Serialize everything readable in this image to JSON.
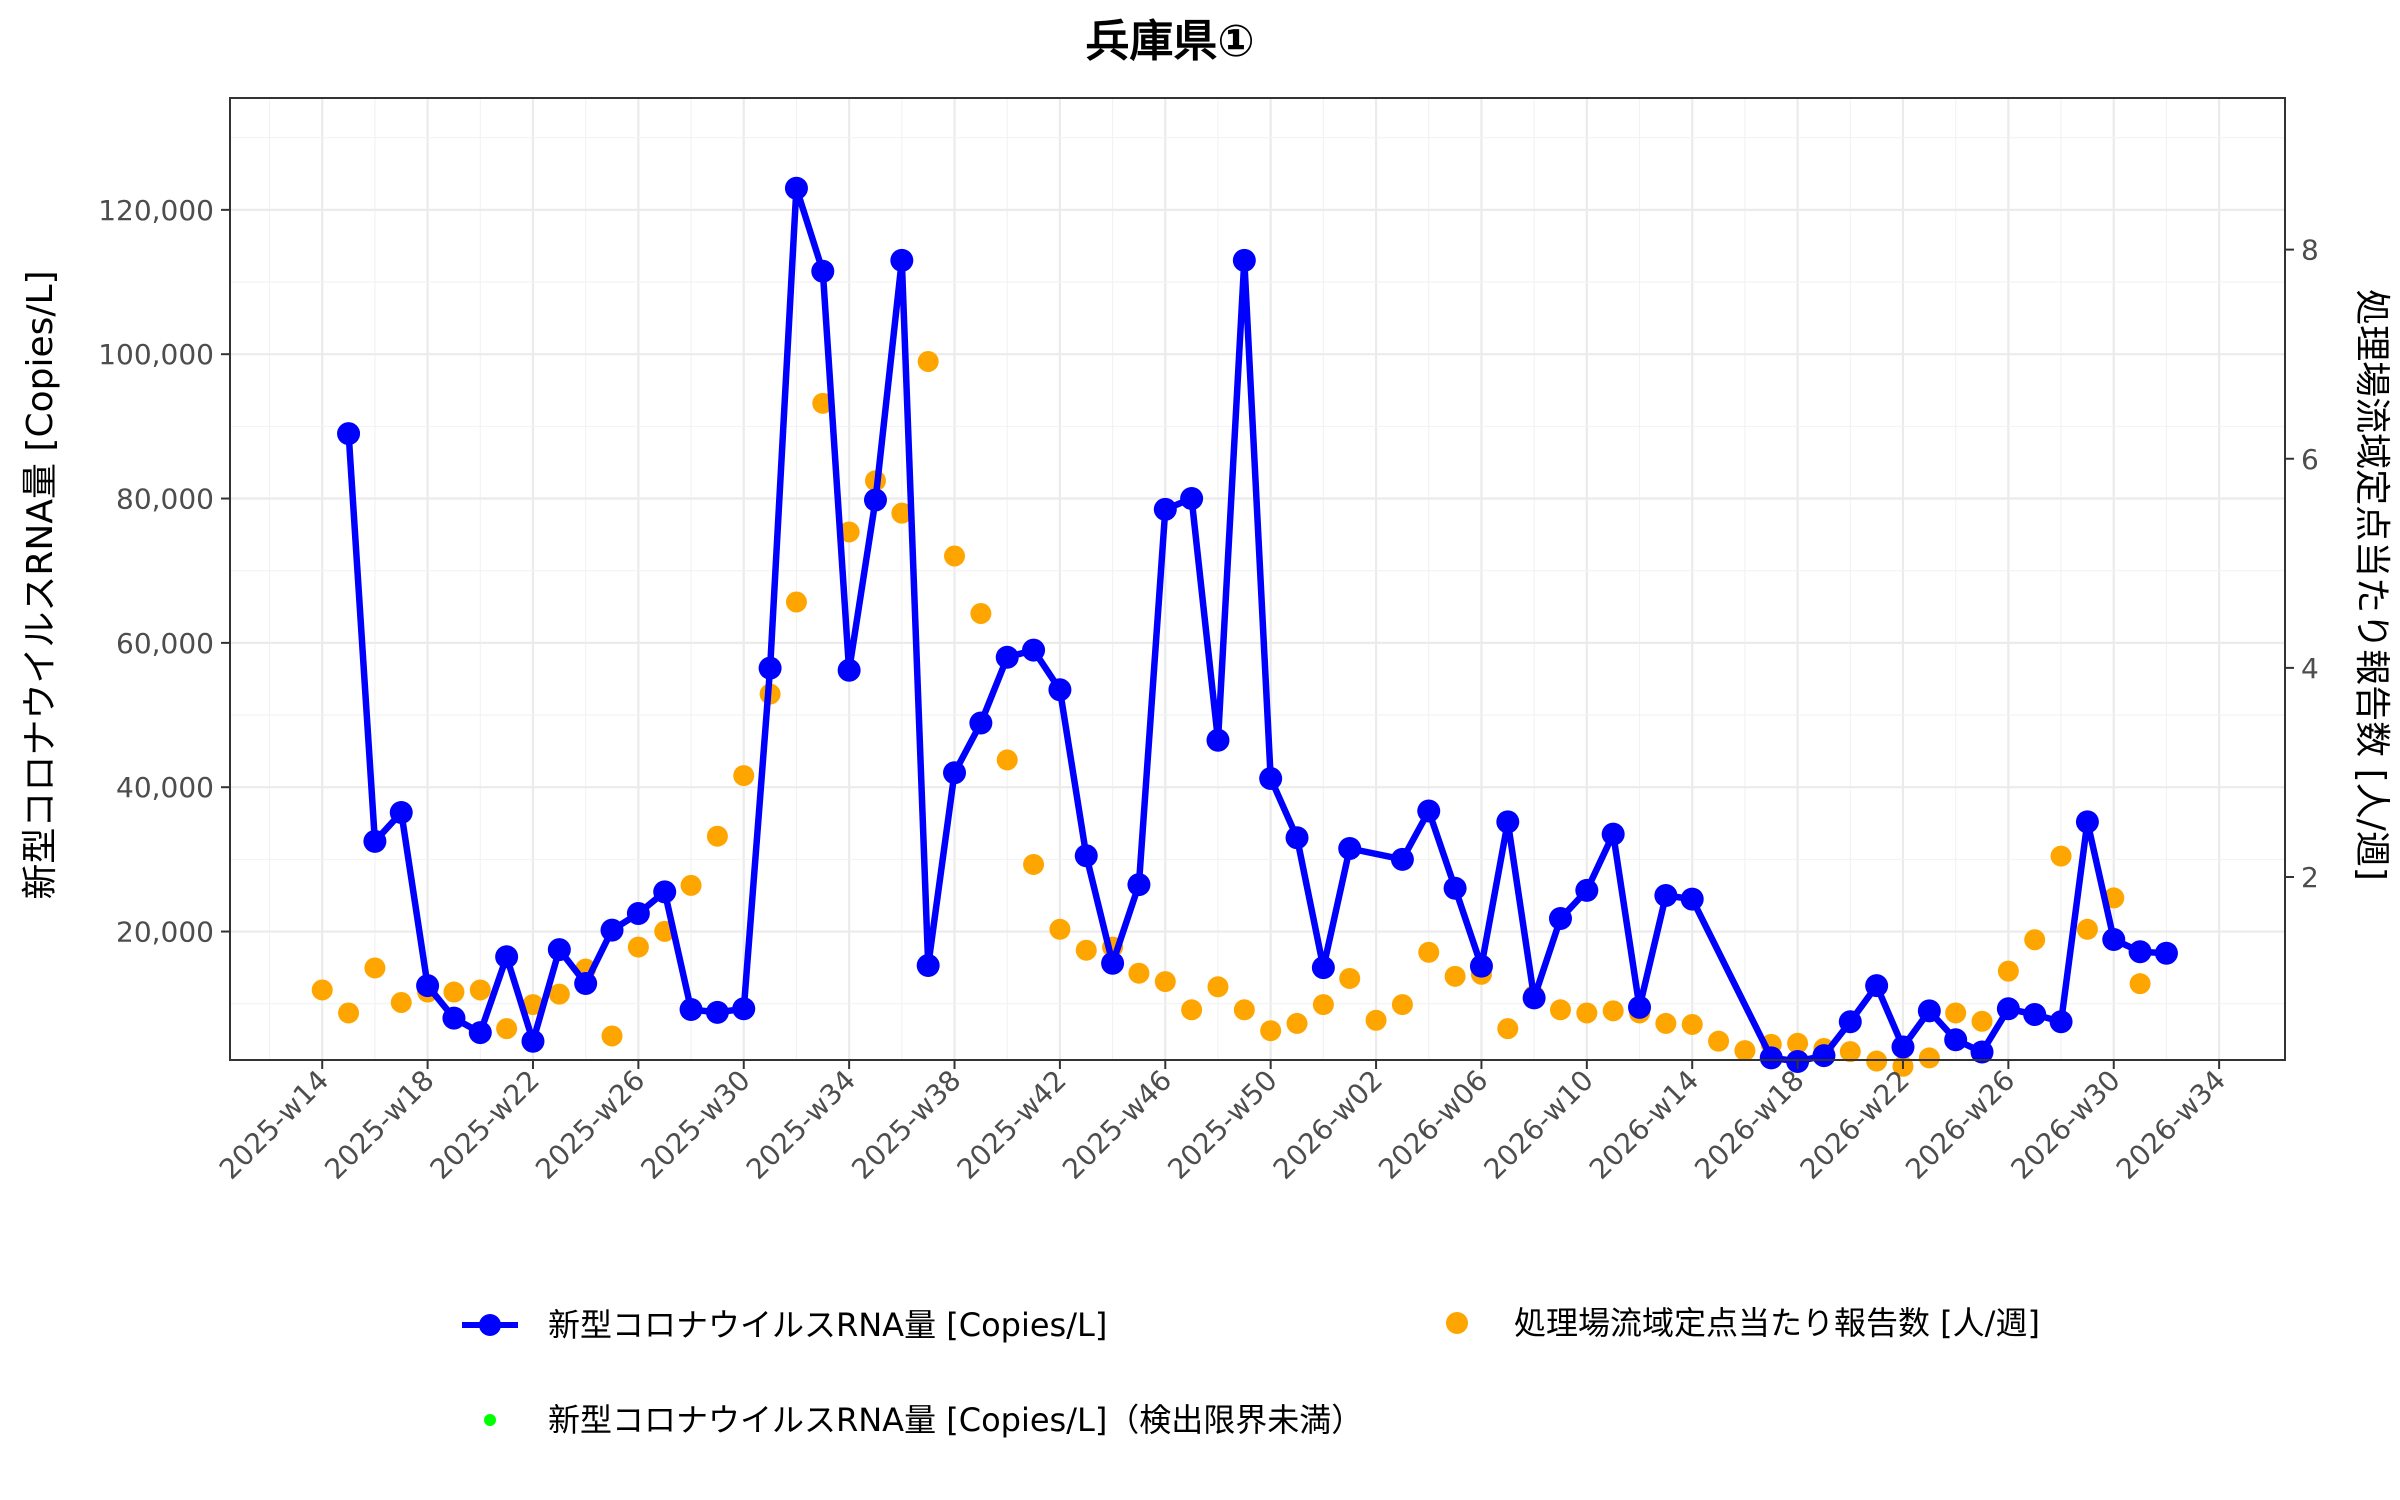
{
  "chart_data": {
    "type": "line",
    "title": "兵庫県①",
    "ylabel": "新型コロナウイルスRNA量 [Copies/L]",
    "ylabel_right": "処理場流域定点当たり報告数 [人/週]",
    "xlabel": "",
    "x_ticks": [
      "2025-w14",
      "2025-w18",
      "2025-w22",
      "2025-w26",
      "2025-w30",
      "2025-w34",
      "2025-w38",
      "2025-w42",
      "2025-w46",
      "2025-w50",
      "2026-w02",
      "2026-w06",
      "2026-w10",
      "2026-w14",
      "2026-w18",
      "2026-w22",
      "2026-w26",
      "2026-w30",
      "2026-w34"
    ],
    "y_ticks": [
      "20,000",
      "40,000",
      "60,000",
      "80,000",
      "100,000",
      "120,000"
    ],
    "y_tick_values": [
      20000,
      40000,
      60000,
      80000,
      100000,
      120000
    ],
    "y2_ticks": [
      "2",
      "4",
      "6",
      "8"
    ],
    "y2_tick_values": [
      2,
      4,
      6,
      8
    ],
    "ylim": [
      2200,
      135500
    ],
    "y2lim": [
      0.25,
      9.45
    ],
    "grid": true,
    "legend_position": "bottom",
    "colors": {
      "rna": "#0000ff",
      "reports": "#ffa500",
      "below_limit": "#00ff00"
    },
    "series": [
      {
        "name": "新型コロナウイルスRNA量 [Copies/L]",
        "axis": "left",
        "style": "line-points",
        "points": [
          [
            15,
            89000
          ],
          [
            16,
            32500
          ],
          [
            17,
            36500
          ],
          [
            18,
            12500
          ],
          [
            19,
            8000
          ],
          [
            20,
            6000
          ],
          [
            21,
            16500
          ],
          [
            22,
            4800
          ],
          [
            23,
            17500
          ],
          [
            24,
            12800
          ],
          [
            25,
            20200
          ],
          [
            26,
            22500
          ],
          [
            27,
            25500
          ],
          [
            28,
            9200
          ],
          [
            29,
            8800
          ],
          [
            30,
            9300
          ],
          [
            31,
            56500
          ],
          [
            32,
            123000
          ],
          [
            33,
            111500
          ],
          [
            34,
            56200
          ],
          [
            35,
            79800
          ],
          [
            36,
            113000
          ],
          [
            37,
            15300
          ],
          [
            38,
            42000
          ],
          [
            39,
            48900
          ],
          [
            40,
            58000
          ],
          [
            41,
            59000
          ],
          [
            42,
            53500
          ],
          [
            43,
            30500
          ],
          [
            44,
            15600
          ],
          [
            45,
            26500
          ],
          [
            46,
            78500
          ],
          [
            47,
            80000
          ],
          [
            48,
            46500
          ],
          [
            49,
            113000
          ],
          [
            50,
            41200
          ],
          [
            51,
            33000
          ],
          [
            52,
            15000
          ],
          [
            53,
            31500
          ],
          [
            55,
            30000
          ],
          [
            56,
            36700
          ],
          [
            57,
            26000
          ],
          [
            58,
            15200
          ],
          [
            59,
            35200
          ],
          [
            60,
            10800
          ],
          [
            61,
            21800
          ],
          [
            62,
            25700
          ],
          [
            63,
            33500
          ],
          [
            64,
            9500
          ],
          [
            65,
            25000
          ],
          [
            66,
            24500
          ],
          [
            69,
            2500
          ],
          [
            70,
            2000
          ],
          [
            71,
            2800
          ],
          [
            72,
            7500
          ],
          [
            73,
            12500
          ],
          [
            74,
            4000
          ],
          [
            75,
            9000
          ],
          [
            76,
            5000
          ],
          [
            77,
            3300
          ],
          [
            78,
            9300
          ],
          [
            79,
            8500
          ],
          [
            80,
            7500
          ],
          [
            81,
            35200
          ],
          [
            82,
            18900
          ],
          [
            83,
            17200
          ],
          [
            84,
            17000
          ]
        ]
      },
      {
        "name": "処理場流域定点当たり報告数 [人/週]",
        "axis": "right",
        "style": "points",
        "points": [
          [
            14,
            0.92
          ],
          [
            15,
            0.7
          ],
          [
            16,
            1.13
          ],
          [
            17,
            0.8
          ],
          [
            18,
            0.9
          ],
          [
            19,
            0.9
          ],
          [
            20,
            0.92
          ],
          [
            21,
            0.55
          ],
          [
            22,
            0.78
          ],
          [
            23,
            0.88
          ],
          [
            24,
            1.12
          ],
          [
            25,
            0.48
          ],
          [
            26,
            1.33
          ],
          [
            27,
            1.48
          ],
          [
            28,
            1.92
          ],
          [
            29,
            2.39
          ],
          [
            30,
            2.97
          ],
          [
            31,
            3.75
          ],
          [
            32,
            4.63
          ],
          [
            33,
            6.53
          ],
          [
            34,
            5.3
          ],
          [
            35,
            5.79
          ],
          [
            36,
            5.48
          ],
          [
            37,
            6.93
          ],
          [
            38,
            5.07
          ],
          [
            39,
            4.52
          ],
          [
            40,
            3.12
          ],
          [
            41,
            2.12
          ],
          [
            42,
            1.5
          ],
          [
            43,
            1.3
          ],
          [
            44,
            1.33
          ],
          [
            45,
            1.08
          ],
          [
            46,
            1.0
          ],
          [
            47,
            0.73
          ],
          [
            48,
            0.95
          ],
          [
            49,
            0.73
          ],
          [
            50,
            0.53
          ],
          [
            51,
            0.6
          ],
          [
            52,
            0.78
          ],
          [
            53,
            1.03
          ],
          [
            54,
            0.63
          ],
          [
            55,
            0.78
          ],
          [
            56,
            1.28
          ],
          [
            57,
            1.05
          ],
          [
            58,
            1.07
          ],
          [
            59,
            0.55
          ],
          [
            60,
            0.87
          ],
          [
            61,
            0.73
          ],
          [
            62,
            0.7
          ],
          [
            63,
            0.72
          ],
          [
            64,
            0.7
          ],
          [
            65,
            0.6
          ],
          [
            66,
            0.59
          ],
          [
            67,
            0.43
          ],
          [
            68,
            0.34
          ],
          [
            69,
            0.4
          ],
          [
            70,
            0.41
          ],
          [
            71,
            0.36
          ],
          [
            72,
            0.33
          ],
          [
            73,
            0.24
          ],
          [
            74,
            0.19
          ],
          [
            75,
            0.27
          ],
          [
            76,
            0.7
          ],
          [
            77,
            0.62
          ],
          [
            78,
            1.1
          ],
          [
            79,
            1.4
          ],
          [
            80,
            2.2
          ],
          [
            81,
            1.5
          ],
          [
            82,
            1.8
          ],
          [
            83,
            0.98
          ]
        ]
      },
      {
        "name": "新型コロナウイルスRNA量 [Copies/L]（検出限界未満）",
        "axis": "left",
        "style": "points",
        "points": []
      }
    ]
  }
}
